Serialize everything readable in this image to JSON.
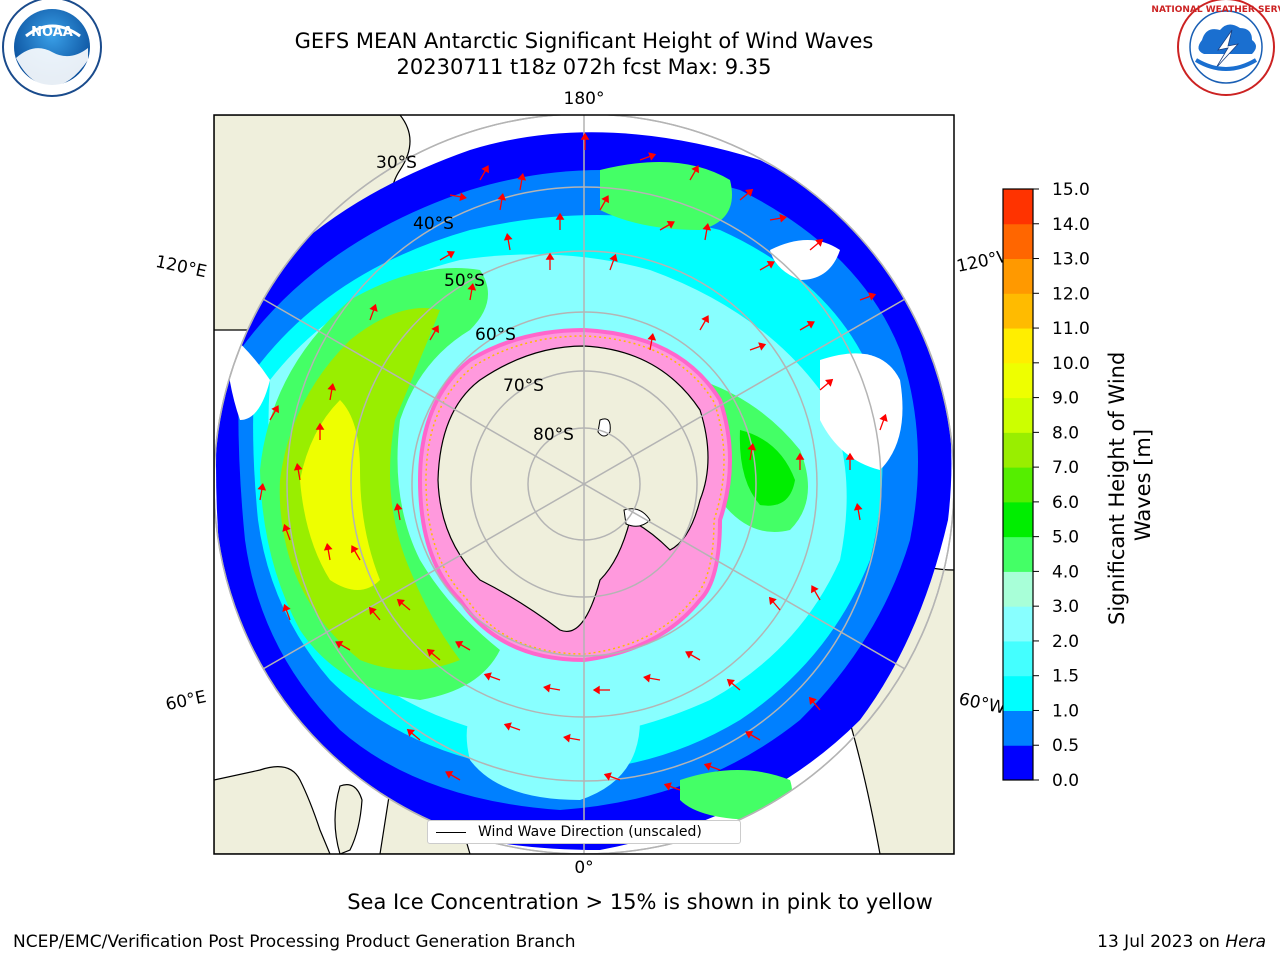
{
  "header": {
    "title_line1": "GEFS MEAN Antarctic Significant Height of Wind Waves",
    "title_line2": "20230711 t18z 072h fcst   Max: 9.35"
  },
  "logos": {
    "left": {
      "name": "noaa-logo",
      "text": "NOAA"
    },
    "right": {
      "name": "national-weather-service-logo",
      "text": "NATIONAL WEATHER SERVICE"
    }
  },
  "map": {
    "longitude_labels": {
      "top": "180°",
      "bottom": "0°",
      "upper_left": "120°E",
      "upper_right": "120°W",
      "lower_left": "60°E",
      "lower_right": "60°W"
    },
    "latitude_labels": [
      "30°S",
      "40°S",
      "50°S",
      "60°S",
      "70°S",
      "80°S"
    ],
    "legend_label": "Wind Wave Direction (unscaled)",
    "colors": {
      "land": "#efefdc",
      "ocean_fill": "#ffffff",
      "gridline": "#b4b4b4",
      "arrow": "#ff0000",
      "ice": "#ff66cc"
    }
  },
  "colorbar": {
    "label": "Significant Height of Wind Waves [m]",
    "ticks": [
      "0.0",
      "0.5",
      "1.0",
      "1.5",
      "2.0",
      "3.0",
      "4.0",
      "5.0",
      "6.0",
      "7.0",
      "8.0",
      "9.0",
      "10.0",
      "11.0",
      "12.0",
      "13.0",
      "14.0",
      "15.0"
    ],
    "colors": [
      "#0000ff",
      "#0080ff",
      "#00ffff",
      "#44ffff",
      "#88ffff",
      "#a8ffd8",
      "#44ff66",
      "#00ee00",
      "#55ee00",
      "#99ee00",
      "#ccff00",
      "#eeff00",
      "#ffee00",
      "#ffbb00",
      "#ff9900",
      "#ff6600",
      "#ff3300",
      "#ff0000"
    ]
  },
  "captions": {
    "sea_ice": "Sea Ice Concentration > 15% is shown in pink to yellow",
    "footer_left": "NCEP/EMC/Verification Post Processing Product Generation Branch",
    "footer_right_date": "13 Jul 2023 on ",
    "footer_right_host": "Hera"
  }
}
